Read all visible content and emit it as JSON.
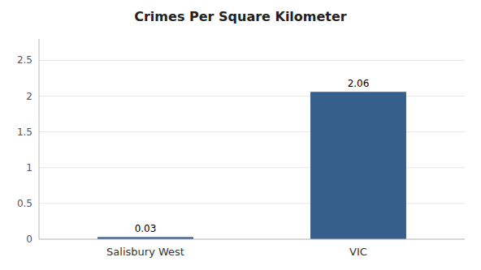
{
  "chart_data": {
    "type": "bar",
    "title": "Crimes Per Square Kilometer",
    "categories": [
      "Salisbury West",
      "VIC"
    ],
    "values": [
      0.03,
      2.06
    ],
    "color": "#365f8c",
    "ylim": [
      0,
      2.8
    ],
    "yticks": [
      0,
      0.5,
      1,
      1.5,
      2,
      2.5
    ],
    "grid": true,
    "data_labels": true
  }
}
